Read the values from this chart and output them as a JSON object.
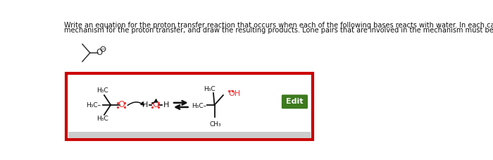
{
  "title_line1": "Write an equation for the proton transfer reaction that occurs when each of the following bases reacts with water. In each case, draw curved arrows that show a",
  "title_line2": "mechanism for the proton transfer, and draw the resulting products. Lone pairs that are involved in the mechanism must be drawn.",
  "title_fontsize": 7.0,
  "background_color": "#ffffff",
  "box_border_color": "#cc0000",
  "edit_btn_color": "#3d7a1e",
  "edit_btn_text": "Edit",
  "edit_btn_text_color": "#ffffff",
  "red_color": "#ee3333",
  "black_color": "#111111",
  "gray_color": "#888888"
}
